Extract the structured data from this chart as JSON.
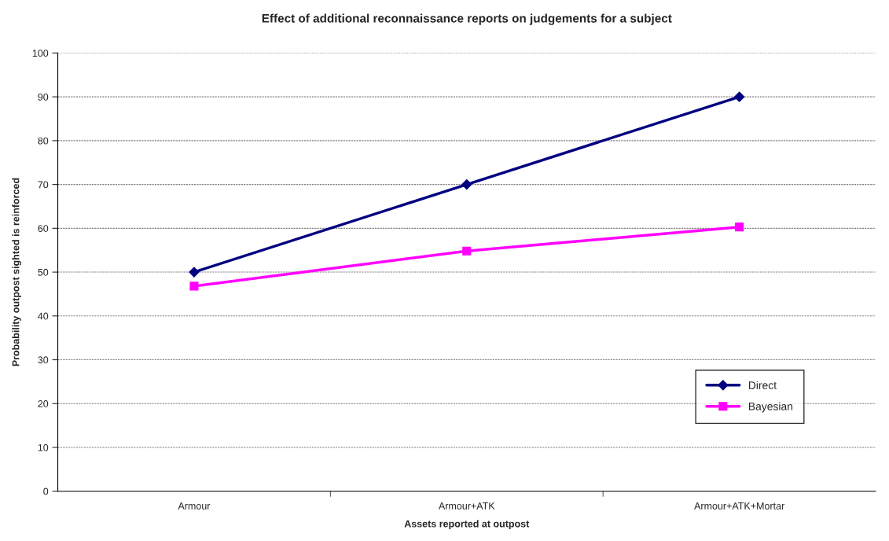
{
  "chart_data": {
    "type": "line",
    "title": "Effect of additional reconnaissance reports on judgements for a subject",
    "xlabel": "Assets reported at outpost",
    "ylabel": "Probability outpost sighted is reinforced",
    "categories": [
      "Armour",
      "Armour+ATK",
      "Armour+ATK+Mortar"
    ],
    "series": [
      {
        "name": "Direct",
        "color": "#000080",
        "marker": "diamond",
        "values": [
          50,
          70,
          90
        ]
      },
      {
        "name": "Bayesian",
        "color": "#ff00ff",
        "marker": "square",
        "values": [
          46.8,
          54.8,
          60.3
        ]
      }
    ],
    "ylim": [
      0,
      100
    ],
    "yticks": [
      0,
      10,
      20,
      30,
      40,
      50,
      60,
      70,
      80,
      90,
      100
    ],
    "grid": "y",
    "legend": "bottom right",
    "line_style": "solid"
  }
}
